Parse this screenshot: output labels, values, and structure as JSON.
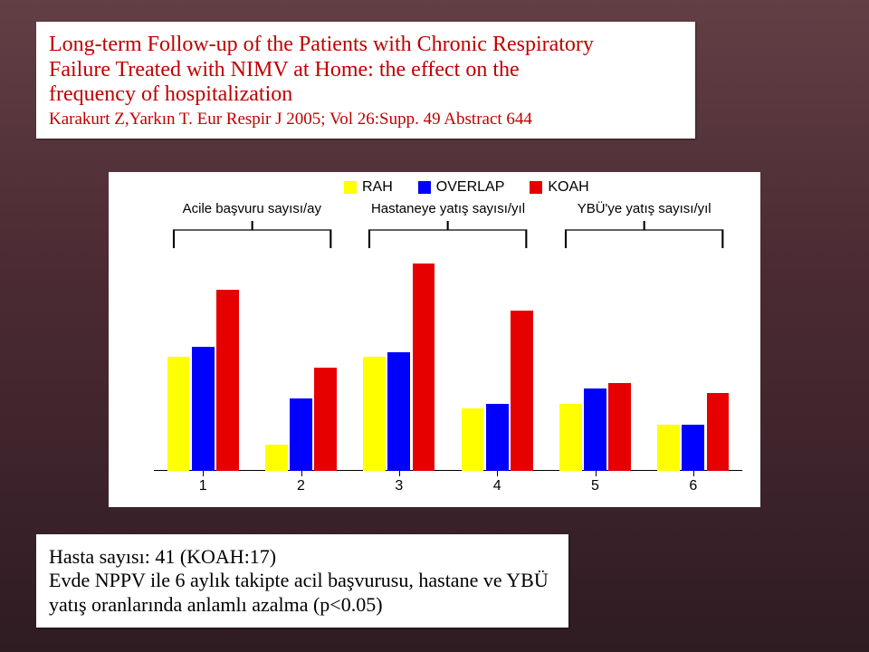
{
  "title": {
    "line1": "Long-term Follow-up of the Patients with Chronic Respiratory",
    "line2": "Failure Treated with NIMV at Home: the effect on the",
    "line3": "frequency of hospitalization",
    "citation": "Karakurt Z,Yarkın T. Eur Respir J 2005; Vol 26:Supp. 49 Abstract 644",
    "color": "#c00000",
    "fontsize_main": 24,
    "fontsize_cite": 19
  },
  "footer": {
    "line1": "Hasta sayısı: 41 (KOAH:17)",
    "line2": "Evde NPPV ile 6 aylık takipte acil başvurusu, hastane ve YBÜ",
    "line3": "yatış oranlarında anlamlı azalma (p<0.05)",
    "fontsize": 22
  },
  "chart": {
    "type": "bar",
    "background_color": "#ffffff",
    "legend": {
      "items": [
        {
          "label": "RAH",
          "color": "#ffff00"
        },
        {
          "label": "OVERLAP",
          "color": "#0000ff"
        },
        {
          "label": "KOAH",
          "color": "#e60000"
        }
      ],
      "fontsize": 16
    },
    "group_labels": {
      "items": [
        "Acile başvuru sayısı/ay",
        "Hastaneye yatış sayısı/yıl",
        "YBÜ'ye yatış sayısı/yıl"
      ],
      "fontsize": 15
    },
    "x_labels": [
      "1",
      "2",
      "3",
      "4",
      "5",
      "6"
    ],
    "x_label_fontsize": 16,
    "ylim": [
      0,
      4.2
    ],
    "bar_width_pct": 3.8,
    "bar_gap_pct": 0.4,
    "series_colors": {
      "RAH": "#ffff00",
      "OVERLAP": "#0000ff",
      "KOAH": "#e60000"
    },
    "clusters": [
      {
        "x": 1,
        "values": {
          "RAH": 2.2,
          "OVERLAP": 2.4,
          "KOAH": 3.5
        }
      },
      {
        "x": 2,
        "values": {
          "RAH": 0.5,
          "OVERLAP": 1.4,
          "KOAH": 2.0
        }
      },
      {
        "x": 3,
        "values": {
          "RAH": 2.2,
          "OVERLAP": 2.3,
          "KOAH": 4.0
        }
      },
      {
        "x": 4,
        "values": {
          "RAH": 1.2,
          "OVERLAP": 1.3,
          "KOAH": 3.1
        }
      },
      {
        "x": 5,
        "values": {
          "RAH": 1.3,
          "OVERLAP": 1.6,
          "KOAH": 1.7
        }
      },
      {
        "x": 6,
        "values": {
          "RAH": 0.9,
          "OVERLAP": 0.9,
          "KOAH": 1.5
        }
      }
    ],
    "bracket_color": "#000000"
  }
}
